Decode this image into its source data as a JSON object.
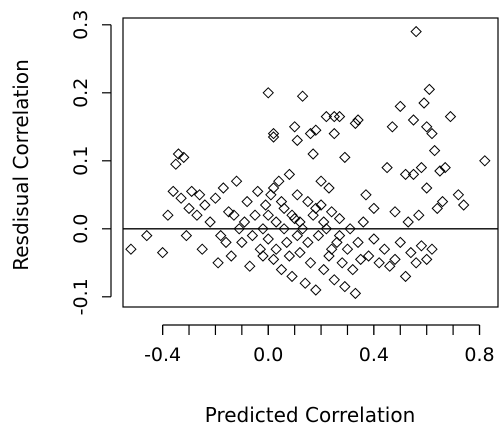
{
  "chart_data": {
    "type": "scatter",
    "title": "",
    "xlabel": "Predicted Correlation",
    "ylabel": "Resdisual Correlation",
    "xlim": [
      -0.55,
      0.87
    ],
    "ylim": [
      -0.115,
      0.31
    ],
    "xticks": [
      -0.4,
      0.0,
      0.4,
      0.8
    ],
    "xtick_labels": [
      "-0.4",
      "0.0",
      "0.4",
      "0.8"
    ],
    "yticks": [
      -0.1,
      0.0,
      0.1,
      0.2,
      0.3
    ],
    "ytick_labels": [
      "-0.1",
      "0.0",
      "0.1",
      "0.2",
      "0.3"
    ],
    "reference_line_y": 0.0,
    "grid": false,
    "marker": "open-diamond",
    "series": [
      {
        "points": [
          [
            -0.52,
            -0.03
          ],
          [
            -0.46,
            -0.01
          ],
          [
            -0.4,
            -0.035
          ],
          [
            -0.38,
            0.02
          ],
          [
            -0.36,
            0.055
          ],
          [
            -0.35,
            0.095
          ],
          [
            -0.34,
            0.11
          ],
          [
            -0.32,
            0.105
          ],
          [
            -0.33,
            0.045
          ],
          [
            -0.3,
            0.03
          ],
          [
            -0.29,
            0.055
          ],
          [
            -0.31,
            -0.01
          ],
          [
            -0.27,
            0.02
          ],
          [
            -0.26,
            0.05
          ],
          [
            -0.25,
            -0.03
          ],
          [
            -0.24,
            0.035
          ],
          [
            -0.22,
            0.01
          ],
          [
            -0.2,
            0.045
          ],
          [
            -0.19,
            -0.05
          ],
          [
            -0.17,
            0.06
          ],
          [
            -0.15,
            0.025
          ],
          [
            -0.14,
            -0.04
          ],
          [
            -0.12,
            0.07
          ],
          [
            -0.11,
            0.0
          ],
          [
            -0.1,
            -0.02
          ],
          [
            -0.08,
            0.04
          ],
          [
            -0.07,
            -0.055
          ],
          [
            -0.05,
            0.02
          ],
          [
            -0.04,
            0.055
          ],
          [
            -0.03,
            -0.03
          ],
          [
            -0.02,
            0.0
          ],
          [
            -0.01,
            0.035
          ],
          [
            0.0,
            -0.015
          ],
          [
            0.01,
            0.05
          ],
          [
            0.02,
            -0.045
          ],
          [
            0.03,
            0.01
          ],
          [
            0.04,
            0.07
          ],
          [
            0.05,
            -0.06
          ],
          [
            0.06,
            0.03
          ],
          [
            0.07,
            -0.02
          ],
          [
            0.08,
            0.08
          ],
          [
            0.09,
            -0.07
          ],
          [
            0.1,
            0.015
          ],
          [
            0.11,
            0.05
          ],
          [
            0.12,
            -0.035
          ],
          [
            0.13,
            0.0
          ],
          [
            0.14,
            -0.08
          ],
          [
            0.15,
            0.04
          ],
          [
            0.16,
            -0.05
          ],
          [
            0.17,
            0.02
          ],
          [
            0.18,
            -0.09
          ],
          [
            0.19,
            -0.01
          ],
          [
            0.2,
            0.035
          ],
          [
            0.21,
            -0.06
          ],
          [
            0.22,
            0.0
          ],
          [
            0.23,
            -0.04
          ],
          [
            0.24,
            0.025
          ],
          [
            0.25,
            -0.075
          ],
          [
            0.26,
            -0.02
          ],
          [
            0.27,
            0.015
          ],
          [
            0.28,
            -0.05
          ],
          [
            0.29,
            -0.085
          ],
          [
            0.3,
            -0.03
          ],
          [
            0.31,
            0.0
          ],
          [
            0.32,
            -0.06
          ],
          [
            0.33,
            -0.095
          ],
          [
            0.34,
            -0.02
          ],
          [
            0.35,
            -0.045
          ],
          [
            0.36,
            0.01
          ],
          [
            0.38,
            -0.04
          ],
          [
            0.4,
            -0.015
          ],
          [
            0.42,
            -0.05
          ],
          [
            0.44,
            -0.03
          ],
          [
            0.46,
            -0.055
          ],
          [
            0.48,
            -0.045
          ],
          [
            0.5,
            -0.02
          ],
          [
            0.52,
            -0.07
          ],
          [
            0.54,
            -0.035
          ],
          [
            0.56,
            -0.05
          ],
          [
            0.58,
            -0.025
          ],
          [
            0.6,
            -0.045
          ],
          [
            0.62,
            -0.03
          ],
          [
            -0.18,
            -0.01
          ],
          [
            -0.09,
            0.01
          ],
          [
            -0.06,
            -0.01
          ],
          [
            0.0,
            0.02
          ],
          [
            0.03,
            -0.03
          ],
          [
            0.06,
            0.0
          ],
          [
            0.09,
            0.02
          ],
          [
            0.12,
            0.01
          ],
          [
            0.15,
            -0.02
          ],
          [
            0.05,
            0.04
          ],
          [
            -0.02,
            -0.04
          ],
          [
            0.02,
            0.06
          ],
          [
            0.08,
            -0.04
          ],
          [
            0.11,
            -0.01
          ],
          [
            -0.13,
            0.02
          ],
          [
            -0.16,
            -0.02
          ],
          [
            0.18,
            0.03
          ],
          [
            0.21,
            0.01
          ],
          [
            0.24,
            -0.03
          ],
          [
            0.27,
            -0.01
          ],
          [
            0.0,
            0.2
          ],
          [
            0.02,
            0.14
          ],
          [
            0.02,
            0.135
          ],
          [
            0.1,
            0.15
          ],
          [
            0.11,
            0.13
          ],
          [
            0.13,
            0.195
          ],
          [
            0.16,
            0.14
          ],
          [
            0.17,
            0.11
          ],
          [
            0.18,
            0.145
          ],
          [
            0.22,
            0.165
          ],
          [
            0.25,
            0.165
          ],
          [
            0.25,
            0.14
          ],
          [
            0.27,
            0.165
          ],
          [
            0.2,
            0.07
          ],
          [
            0.23,
            0.06
          ],
          [
            0.29,
            0.105
          ],
          [
            0.33,
            0.155
          ],
          [
            0.34,
            0.16
          ],
          [
            0.37,
            0.05
          ],
          [
            0.4,
            0.03
          ],
          [
            0.47,
            0.15
          ],
          [
            0.5,
            0.18
          ],
          [
            0.55,
            0.16
          ],
          [
            0.56,
            0.29
          ],
          [
            0.59,
            0.185
          ],
          [
            0.61,
            0.205
          ],
          [
            0.6,
            0.15
          ],
          [
            0.62,
            0.14
          ],
          [
            0.63,
            0.115
          ],
          [
            0.58,
            0.09
          ],
          [
            0.55,
            0.08
          ],
          [
            0.65,
            0.085
          ],
          [
            0.67,
            0.09
          ],
          [
            0.69,
            0.165
          ],
          [
            0.72,
            0.05
          ],
          [
            0.74,
            0.035
          ],
          [
            0.82,
            0.1
          ],
          [
            0.52,
            0.08
          ],
          [
            0.48,
            0.025
          ],
          [
            0.45,
            0.09
          ],
          [
            0.6,
            0.06
          ],
          [
            0.66,
            0.04
          ],
          [
            0.64,
            0.03
          ],
          [
            0.57,
            0.02
          ],
          [
            0.53,
            0.01
          ]
        ]
      }
    ]
  }
}
